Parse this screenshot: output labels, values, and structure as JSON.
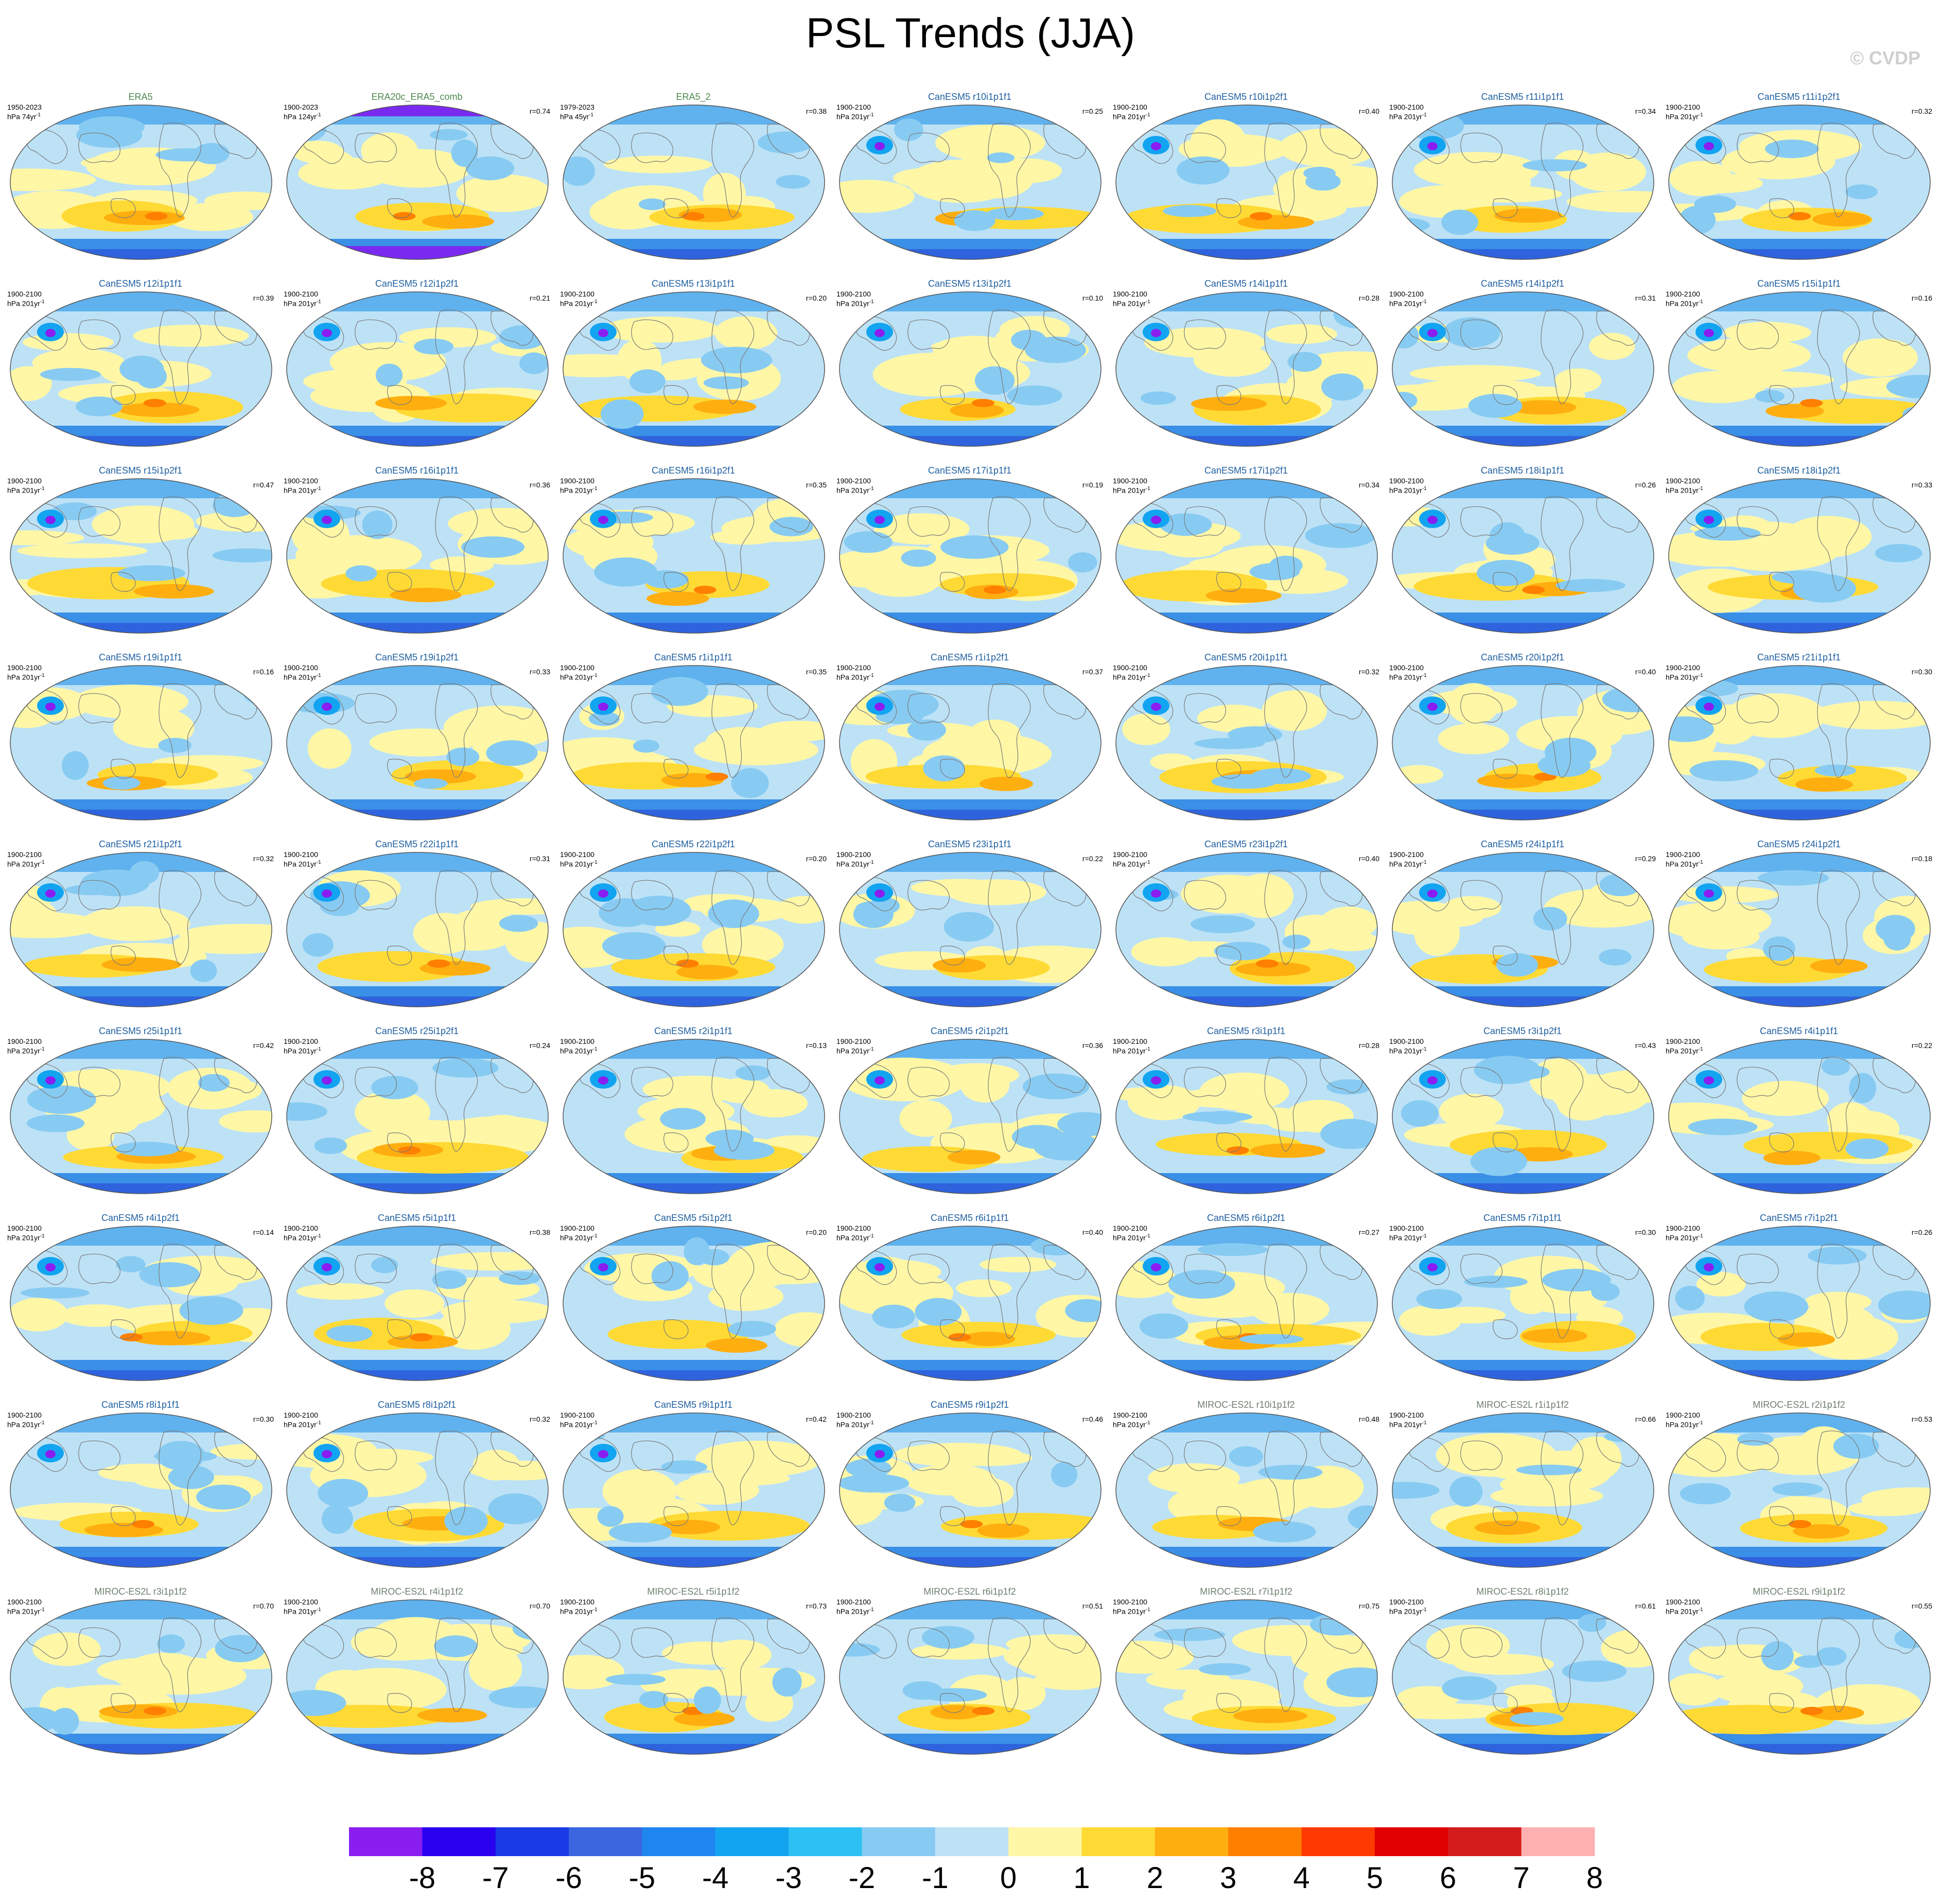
{
  "title": "PSL Trends (JJA)",
  "copyright": "© CVDP",
  "panels": [
    {
      "name": "ERA5",
      "group": "obs",
      "period": "1950-2023",
      "units": "hPa 74yr",
      "r": "",
      "seed": 1
    },
    {
      "name": "ERA20c_ERA5_comb",
      "group": "obs",
      "period": "1900-2023",
      "units": "hPa 124yr",
      "r": "r=0.74",
      "seed": 2
    },
    {
      "name": "ERA5_2",
      "group": "obs",
      "period": "1979-2023",
      "units": "hPa 45yr",
      "r": "r=0.38",
      "seed": 3
    },
    {
      "name": "CanESM5 r10i1p1f1",
      "group": "can",
      "period": "1900-2100",
      "units": "hPa 201yr",
      "r": "r=0.25",
      "seed": 4
    },
    {
      "name": "CanESM5 r10i1p2f1",
      "group": "can",
      "period": "1900-2100",
      "units": "hPa 201yr",
      "r": "r=0.40",
      "seed": 5
    },
    {
      "name": "CanESM5 r11i1p1f1",
      "group": "can",
      "period": "1900-2100",
      "units": "hPa 201yr",
      "r": "r=0.34",
      "seed": 6
    },
    {
      "name": "CanESM5 r11i1p2f1",
      "group": "can",
      "period": "1900-2100",
      "units": "hPa 201yr",
      "r": "r=0.32",
      "seed": 7
    },
    {
      "name": "CanESM5 r12i1p1f1",
      "group": "can",
      "period": "1900-2100",
      "units": "hPa 201yr",
      "r": "r=0.39",
      "seed": 8
    },
    {
      "name": "CanESM5 r12i1p2f1",
      "group": "can",
      "period": "1900-2100",
      "units": "hPa 201yr",
      "r": "r=0.21",
      "seed": 9
    },
    {
      "name": "CanESM5 r13i1p1f1",
      "group": "can",
      "period": "1900-2100",
      "units": "hPa 201yr",
      "r": "r=0.20",
      "seed": 10
    },
    {
      "name": "CanESM5 r13i1p2f1",
      "group": "can",
      "period": "1900-2100",
      "units": "hPa 201yr",
      "r": "r=0.10",
      "seed": 11
    },
    {
      "name": "CanESM5 r14i1p1f1",
      "group": "can",
      "period": "1900-2100",
      "units": "hPa 201yr",
      "r": "r=0.28",
      "seed": 12
    },
    {
      "name": "CanESM5 r14i1p2f1",
      "group": "can",
      "period": "1900-2100",
      "units": "hPa 201yr",
      "r": "r=0.31",
      "seed": 13
    },
    {
      "name": "CanESM5 r15i1p1f1",
      "group": "can",
      "period": "1900-2100",
      "units": "hPa 201yr",
      "r": "r=0.16",
      "seed": 14
    },
    {
      "name": "CanESM5 r15i1p2f1",
      "group": "can",
      "period": "1900-2100",
      "units": "hPa 201yr",
      "r": "r=0.47",
      "seed": 15
    },
    {
      "name": "CanESM5 r16i1p1f1",
      "group": "can",
      "period": "1900-2100",
      "units": "hPa 201yr",
      "r": "r=0.36",
      "seed": 16
    },
    {
      "name": "CanESM5 r16i1p2f1",
      "group": "can",
      "period": "1900-2100",
      "units": "hPa 201yr",
      "r": "r=0.35",
      "seed": 17
    },
    {
      "name": "CanESM5 r17i1p1f1",
      "group": "can",
      "period": "1900-2100",
      "units": "hPa 201yr",
      "r": "r=0.19",
      "seed": 18
    },
    {
      "name": "CanESM5 r17i1p2f1",
      "group": "can",
      "period": "1900-2100",
      "units": "hPa 201yr",
      "r": "r=0.34",
      "seed": 19
    },
    {
      "name": "CanESM5 r18i1p1f1",
      "group": "can",
      "period": "1900-2100",
      "units": "hPa 201yr",
      "r": "r=0.26",
      "seed": 20
    },
    {
      "name": "CanESM5 r18i1p2f1",
      "group": "can",
      "period": "1900-2100",
      "units": "hPa 201yr",
      "r": "r=0.33",
      "seed": 21
    },
    {
      "name": "CanESM5 r19i1p1f1",
      "group": "can",
      "period": "1900-2100",
      "units": "hPa 201yr",
      "r": "r=0.16",
      "seed": 22
    },
    {
      "name": "CanESM5 r19i1p2f1",
      "group": "can",
      "period": "1900-2100",
      "units": "hPa 201yr",
      "r": "r=0.33",
      "seed": 23
    },
    {
      "name": "CanESM5 r1i1p1f1",
      "group": "can",
      "period": "1900-2100",
      "units": "hPa 201yr",
      "r": "r=0.35",
      "seed": 24
    },
    {
      "name": "CanESM5 r1i1p2f1",
      "group": "can",
      "period": "1900-2100",
      "units": "hPa 201yr",
      "r": "r=0.37",
      "seed": 25
    },
    {
      "name": "CanESM5 r20i1p1f1",
      "group": "can",
      "period": "1900-2100",
      "units": "hPa 201yr",
      "r": "r=0.32",
      "seed": 26
    },
    {
      "name": "CanESM5 r20i1p2f1",
      "group": "can",
      "period": "1900-2100",
      "units": "hPa 201yr",
      "r": "r=0.40",
      "seed": 27
    },
    {
      "name": "CanESM5 r21i1p1f1",
      "group": "can",
      "period": "1900-2100",
      "units": "hPa 201yr",
      "r": "r=0.30",
      "seed": 28
    },
    {
      "name": "CanESM5 r21i1p2f1",
      "group": "can",
      "period": "1900-2100",
      "units": "hPa 201yr",
      "r": "r=0.32",
      "seed": 29
    },
    {
      "name": "CanESM5 r22i1p1f1",
      "group": "can",
      "period": "1900-2100",
      "units": "hPa 201yr",
      "r": "r=0.31",
      "seed": 30
    },
    {
      "name": "CanESM5 r22i1p2f1",
      "group": "can",
      "period": "1900-2100",
      "units": "hPa 201yr",
      "r": "r=0.20",
      "seed": 31
    },
    {
      "name": "CanESM5 r23i1p1f1",
      "group": "can",
      "period": "1900-2100",
      "units": "hPa 201yr",
      "r": "r=0.22",
      "seed": 32
    },
    {
      "name": "CanESM5 r23i1p2f1",
      "group": "can",
      "period": "1900-2100",
      "units": "hPa 201yr",
      "r": "r=0.40",
      "seed": 33
    },
    {
      "name": "CanESM5 r24i1p1f1",
      "group": "can",
      "period": "1900-2100",
      "units": "hPa 201yr",
      "r": "r=0.29",
      "seed": 34
    },
    {
      "name": "CanESM5 r24i1p2f1",
      "group": "can",
      "period": "1900-2100",
      "units": "hPa 201yr",
      "r": "r=0.18",
      "seed": 35
    },
    {
      "name": "CanESM5 r25i1p1f1",
      "group": "can",
      "period": "1900-2100",
      "units": "hPa 201yr",
      "r": "r=0.42",
      "seed": 36
    },
    {
      "name": "CanESM5 r25i1p2f1",
      "group": "can",
      "period": "1900-2100",
      "units": "hPa 201yr",
      "r": "r=0.24",
      "seed": 37
    },
    {
      "name": "CanESM5 r2i1p1f1",
      "group": "can",
      "period": "1900-2100",
      "units": "hPa 201yr",
      "r": "r=0.13",
      "seed": 38
    },
    {
      "name": "CanESM5 r2i1p2f1",
      "group": "can",
      "period": "1900-2100",
      "units": "hPa 201yr",
      "r": "r=0.36",
      "seed": 39
    },
    {
      "name": "CanESM5 r3i1p1f1",
      "group": "can",
      "period": "1900-2100",
      "units": "hPa 201yr",
      "r": "r=0.28",
      "seed": 40
    },
    {
      "name": "CanESM5 r3i1p2f1",
      "group": "can",
      "period": "1900-2100",
      "units": "hPa 201yr",
      "r": "r=0.43",
      "seed": 41
    },
    {
      "name": "CanESM5 r4i1p1f1",
      "group": "can",
      "period": "1900-2100",
      "units": "hPa 201yr",
      "r": "r=0.22",
      "seed": 42
    },
    {
      "name": "CanESM5 r4i1p2f1",
      "group": "can",
      "period": "1900-2100",
      "units": "hPa 201yr",
      "r": "r=0.14",
      "seed": 43
    },
    {
      "name": "CanESM5 r5i1p1f1",
      "group": "can",
      "period": "1900-2100",
      "units": "hPa 201yr",
      "r": "r=0.38",
      "seed": 44
    },
    {
      "name": "CanESM5 r5i1p2f1",
      "group": "can",
      "period": "1900-2100",
      "units": "hPa 201yr",
      "r": "r=0.20",
      "seed": 45
    },
    {
      "name": "CanESM5 r6i1p1f1",
      "group": "can",
      "period": "1900-2100",
      "units": "hPa 201yr",
      "r": "r=0.40",
      "seed": 46
    },
    {
      "name": "CanESM5 r6i1p2f1",
      "group": "can",
      "period": "1900-2100",
      "units": "hPa 201yr",
      "r": "r=0.27",
      "seed": 47
    },
    {
      "name": "CanESM5 r7i1p1f1",
      "group": "can",
      "period": "1900-2100",
      "units": "hPa 201yr",
      "r": "r=0.30",
      "seed": 48
    },
    {
      "name": "CanESM5 r7i1p2f1",
      "group": "can",
      "period": "1900-2100",
      "units": "hPa 201yr",
      "r": "r=0.26",
      "seed": 49
    },
    {
      "name": "CanESM5 r8i1p1f1",
      "group": "can",
      "period": "1900-2100",
      "units": "hPa 201yr",
      "r": "r=0.30",
      "seed": 50
    },
    {
      "name": "CanESM5 r8i1p2f1",
      "group": "can",
      "period": "1900-2100",
      "units": "hPa 201yr",
      "r": "r=0.32",
      "seed": 51
    },
    {
      "name": "CanESM5 r9i1p1f1",
      "group": "can",
      "period": "1900-2100",
      "units": "hPa 201yr",
      "r": "r=0.42",
      "seed": 52
    },
    {
      "name": "CanESM5 r9i1p2f1",
      "group": "can",
      "period": "1900-2100",
      "units": "hPa 201yr",
      "r": "r=0.46",
      "seed": 53
    },
    {
      "name": "MIROC-ES2L r10i1p1f2",
      "group": "miroc",
      "period": "1900-2100",
      "units": "hPa 201yr",
      "r": "r=0.48",
      "seed": 54
    },
    {
      "name": "MIROC-ES2L r1i1p1f2",
      "group": "miroc",
      "period": "1900-2100",
      "units": "hPa 201yr",
      "r": "r=0.66",
      "seed": 55
    },
    {
      "name": "MIROC-ES2L r2i1p1f2",
      "group": "miroc",
      "period": "1900-2100",
      "units": "hPa 201yr",
      "r": "r=0.53",
      "seed": 56
    },
    {
      "name": "MIROC-ES2L r3i1p1f2",
      "group": "miroc",
      "period": "1900-2100",
      "units": "hPa 201yr",
      "r": "r=0.70",
      "seed": 57
    },
    {
      "name": "MIROC-ES2L r4i1p1f2",
      "group": "miroc",
      "period": "1900-2100",
      "units": "hPa 201yr",
      "r": "r=0.70",
      "seed": 58
    },
    {
      "name": "MIROC-ES2L r5i1p1f2",
      "group": "miroc",
      "period": "1900-2100",
      "units": "hPa 201yr",
      "r": "r=0.73",
      "seed": 59
    },
    {
      "name": "MIROC-ES2L r6i1p1f2",
      "group": "miroc",
      "period": "1900-2100",
      "units": "hPa 201yr",
      "r": "r=0.51",
      "seed": 60
    },
    {
      "name": "MIROC-ES2L r7i1p1f2",
      "group": "miroc",
      "period": "1900-2100",
      "units": "hPa 201yr",
      "r": "r=0.75",
      "seed": 61
    },
    {
      "name": "MIROC-ES2L r8i1p1f2",
      "group": "miroc",
      "period": "1900-2100",
      "units": "hPa 201yr",
      "r": "r=0.61",
      "seed": 62
    },
    {
      "name": "MIROC-ES2L r9i1p1f2",
      "group": "miroc",
      "period": "1900-2100",
      "units": "hPa 201yr",
      "r": "r=0.55",
      "seed": 63
    }
  ],
  "colorbar": {
    "labels": [
      "-8",
      "-7",
      "-6",
      "-5",
      "-4",
      "-3",
      "-2",
      "-1",
      "0",
      "1",
      "2",
      "3",
      "4",
      "5",
      "6",
      "7",
      "8"
    ],
    "colors": [
      "#8a1ef0",
      "#2a00f0",
      "#1a3ae8",
      "#3a66e0",
      "#1f86f0",
      "#12a4f0",
      "#2cc0f4",
      "#88cbf2",
      "#bde2f6",
      "#fff7a6",
      "#ffda35",
      "#ffae0f",
      "#ff7f00",
      "#ff3a00",
      "#e00000",
      "#d41c1c",
      "#ffb0b0"
    ]
  }
}
